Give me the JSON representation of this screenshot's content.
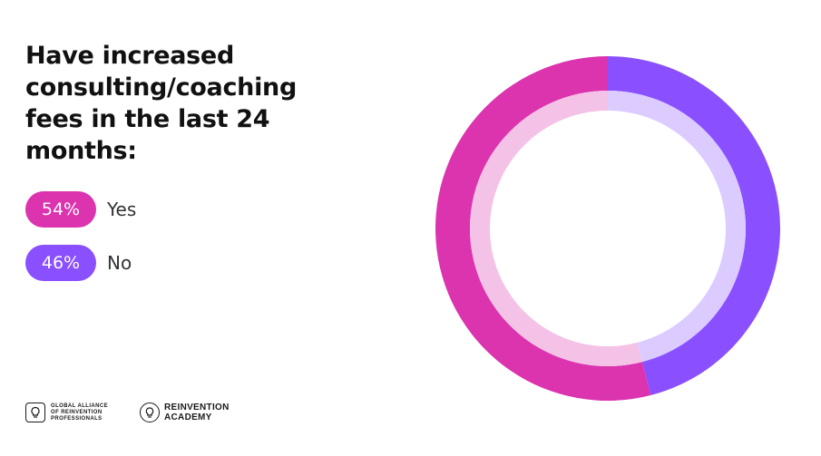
{
  "title": "Have increased consulting/coaching fees in the last 24 months:",
  "colors": {
    "yes": "#DC33AE",
    "no": "#8A4FFF",
    "yes_light": "#F4C2E6",
    "no_light": "#DCCBFF"
  },
  "chart_data": {
    "type": "pie",
    "variant": "donut",
    "title": "Have increased consulting/coaching fees in the last 24 months:",
    "categories": [
      "Yes",
      "No"
    ],
    "values": [
      54,
      46
    ],
    "value_labels": [
      "54%",
      "46%"
    ],
    "legend_position": "left"
  },
  "legend": [
    {
      "pct": "54%",
      "label": "Yes"
    },
    {
      "pct": "46%",
      "label": "No"
    }
  ],
  "logos": {
    "gaorp_line1": "GLOBAL ALLIANCE",
    "gaorp_line2": "OF REINVENTION",
    "gaorp_line3": "PROFESSIONALS",
    "academy_line1": "REINVENTION",
    "academy_line2": "ACADEMY"
  }
}
